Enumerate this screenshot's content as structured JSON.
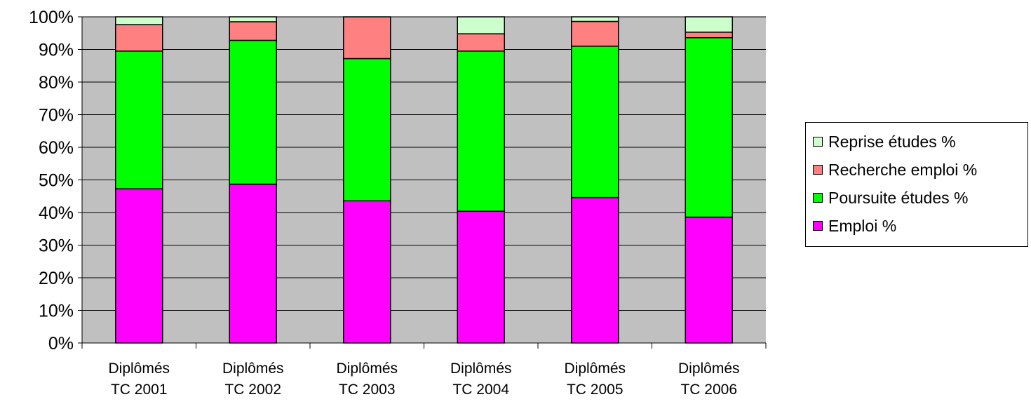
{
  "chart_data": {
    "type": "bar",
    "stacked": true,
    "percent_stacked": true,
    "categories": [
      [
        "Diplômés",
        "TC 2001"
      ],
      [
        "Diplômés",
        "TC 2002"
      ],
      [
        "Diplômés",
        "TC 2003"
      ],
      [
        "Diplômés",
        "TC 2004"
      ],
      [
        "Diplômés",
        "TC 2005"
      ],
      [
        "Diplômés",
        "TC 2006"
      ]
    ],
    "series": [
      {
        "name": "Emploi %",
        "color": "#ff00ff",
        "values": [
          47.3,
          48.7,
          43.6,
          40.4,
          44.6,
          38.6
        ]
      },
      {
        "name": "Poursuite études %",
        "color": "#00ff00",
        "values": [
          42.2,
          44.1,
          43.6,
          49.1,
          46.4,
          55.0
        ]
      },
      {
        "name": "Recherche emploi %",
        "color": "#ff8080",
        "values": [
          8.1,
          5.7,
          12.8,
          5.3,
          7.6,
          1.7
        ]
      },
      {
        "name": "Reprise études %",
        "color": "#ccffcc",
        "values": [
          2.4,
          1.5,
          0.0,
          5.2,
          1.4,
          4.7
        ]
      }
    ],
    "yticks": [
      "0%",
      "10%",
      "20%",
      "30%",
      "40%",
      "50%",
      "60%",
      "70%",
      "80%",
      "90%",
      "100%"
    ],
    "ylim": [
      0,
      100
    ],
    "grid": true,
    "plot_background": "#c0c0c0",
    "legend": {
      "position": "right",
      "order": [
        "Reprise études %",
        "Recherche emploi %",
        "Poursuite études %",
        "Emploi %"
      ]
    }
  }
}
